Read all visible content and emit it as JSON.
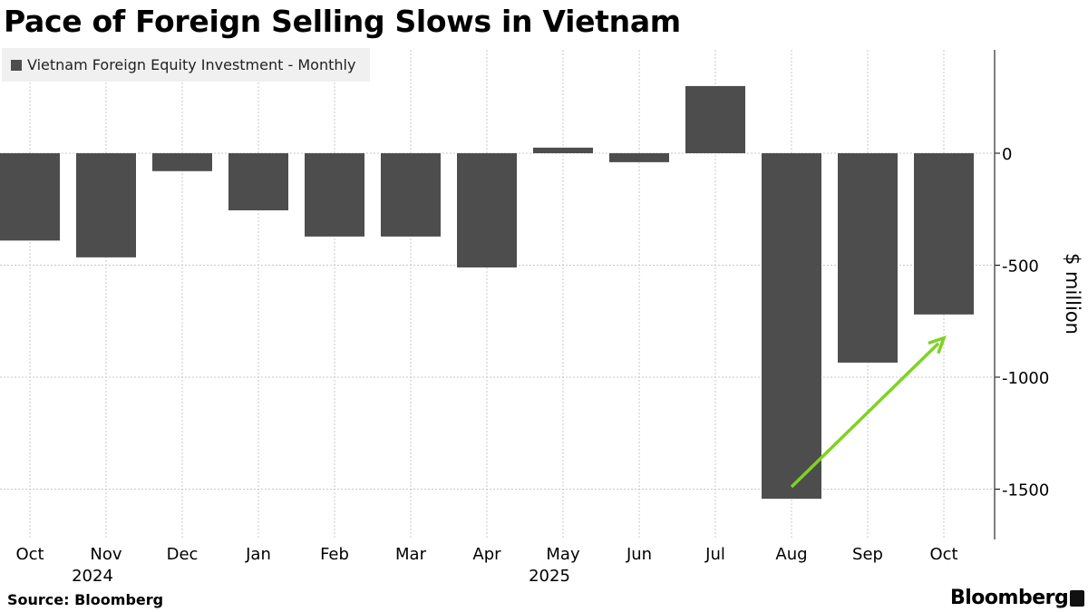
{
  "title": "Pace of Foreign Selling Slows in Vietnam",
  "source": "Source: Bloomberg",
  "logo": "Bloomberg",
  "chart_data": {
    "type": "bar",
    "title": "Pace of Foreign Selling Slows in Vietnam",
    "legend": [
      "Vietnam Foreign Equity Investment - Monthly"
    ],
    "legend_position": "top-left",
    "categories": [
      "Oct",
      "Nov",
      "Dec",
      "Jan",
      "Feb",
      "Mar",
      "Apr",
      "May",
      "Jun",
      "Jul",
      "Aug",
      "Sep",
      "Oct"
    ],
    "year_labels": [
      {
        "index": 1,
        "label": "2024"
      },
      {
        "index": 7,
        "label": "2025"
      }
    ],
    "values": [
      -390,
      -465,
      -80,
      -255,
      -372,
      -372,
      -510,
      25,
      -40,
      300,
      -1543,
      -935,
      -720
    ],
    "ylabel": "$ million",
    "ylim": [
      -1720,
      460
    ],
    "yticks": [
      0,
      -500,
      -1000,
      -1500
    ],
    "ytick_labels": [
      "0",
      "-500",
      "-1000",
      "-1500"
    ],
    "grid": true,
    "bar_color": "#4d4d4d",
    "annotation": {
      "type": "arrow",
      "from_index": 10,
      "to_index": 12,
      "from_value": -1490,
      "to_value": -825,
      "color": "#7ed321"
    }
  }
}
